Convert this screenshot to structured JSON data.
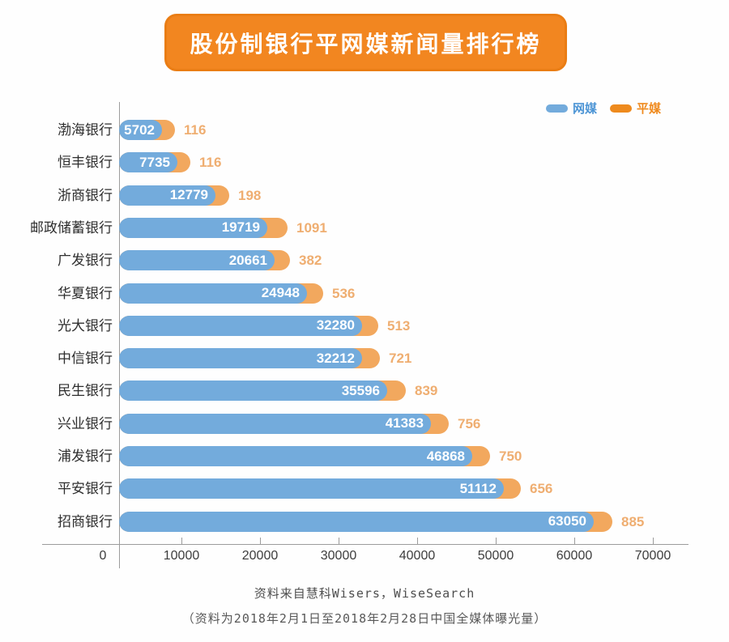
{
  "title": {
    "text": "股份制银行平网媒新闻量排行榜"
  },
  "colors": {
    "banner_orange": "#f28620",
    "banner_border": "#ea7d14",
    "web_blue": "#73abdc",
    "print_orange": "#f2a85e",
    "print_value_text": "#efae71",
    "legend_web_text": "#4d95d5",
    "legend_print_text": "#ef8a1e",
    "axis_line": "#9c9c9c",
    "bar_value_text": "#ffffff"
  },
  "legend": [
    {
      "label": "网媒",
      "color": "#73abdc",
      "text_color": "#4d95d5"
    },
    {
      "label": "平媒",
      "color": "#ee8a1d",
      "text_color": "#ef8a1e"
    }
  ],
  "chart_data": {
    "type": "bar",
    "orientation": "horizontal",
    "title": "股份制银行平网媒新闻量排行榜",
    "categories": [
      "渤海银行",
      "恒丰银行",
      "浙商银行",
      "邮政储蓄银行",
      "广发银行",
      "华夏银行",
      "光大银行",
      "中信银行",
      "民生银行",
      "兴业银行",
      "浦发银行",
      "平安银行",
      "招商银行"
    ],
    "series": [
      {
        "name": "网媒",
        "color": "#73abdc",
        "values": [
          5702,
          7735,
          12779,
          19719,
          20661,
          24948,
          32280,
          32212,
          35596,
          41383,
          46868,
          51112,
          63050
        ]
      },
      {
        "name": "平媒",
        "color": "#f2a85e",
        "values": [
          116,
          116,
          198,
          1091,
          382,
          536,
          513,
          721,
          839,
          756,
          750,
          656,
          885
        ]
      }
    ],
    "xlim": [
      0,
      70000
    ],
    "x_ticks": [
      0,
      10000,
      20000,
      30000,
      40000,
      50000,
      60000,
      70000
    ],
    "grid": false,
    "legend_position": "top-right",
    "value_labels": "shown for both series"
  },
  "footer": {
    "line1": "资料来自慧科Wisers，WiseSearch",
    "line2": "（资料为2018年2月1日至2018年2月28日中国全媒体曝光量）"
  }
}
